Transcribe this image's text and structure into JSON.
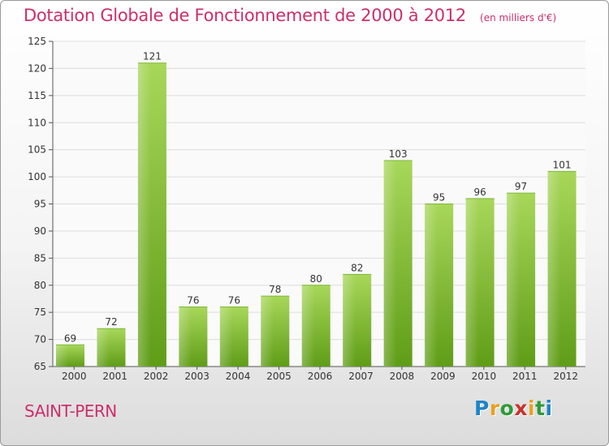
{
  "header": {
    "title": "Dotation Globale de Fonctionnement de 2000 à 2012",
    "unit": "(en milliers d'€)"
  },
  "footer": {
    "commune": "SAINT-PERN",
    "logo_text": "Proxiti",
    "logo_letters": [
      {
        "char": "P",
        "color": "#1f84c6"
      },
      {
        "char": "r",
        "color": "#e9a021"
      },
      {
        "char": "o",
        "color": "#2f9a3a"
      },
      {
        "char": "x",
        "color": "#c8322b"
      },
      {
        "char": "i",
        "color": "#e9a021"
      },
      {
        "char": "t",
        "color": "#2f9a3a"
      },
      {
        "char": "i",
        "color": "#1f84c6"
      }
    ]
  },
  "colors": {
    "bar_light": "#a8d75a",
    "bar_dark": "#5f9d17",
    "text": "#333333",
    "grid": "#dddddd",
    "title": "#cc2f6a"
  },
  "chart_data": {
    "type": "bar",
    "title": "Dotation Globale de Fonctionnement de 2000 à 2012",
    "subtitle": "(en milliers d'€)",
    "categories": [
      "2000",
      "2001",
      "2002",
      "2003",
      "2004",
      "2005",
      "2006",
      "2007",
      "2008",
      "2009",
      "2010",
      "2011",
      "2012"
    ],
    "values": [
      69,
      72,
      121,
      76,
      76,
      78,
      80,
      82,
      103,
      95,
      96,
      97,
      101
    ],
    "ylim": [
      65,
      125
    ],
    "yticks": [
      65,
      70,
      75,
      80,
      85,
      90,
      95,
      100,
      105,
      110,
      115,
      120,
      125
    ],
    "grid": true,
    "legend": "none"
  }
}
